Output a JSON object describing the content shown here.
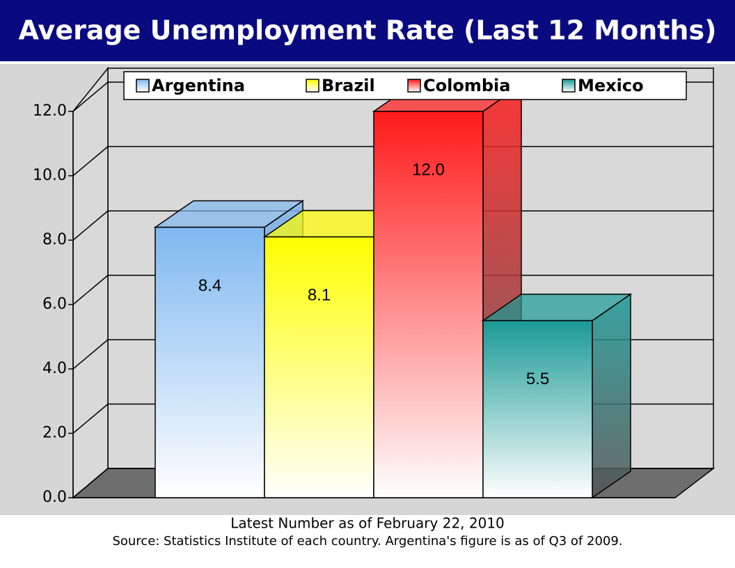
{
  "chart_data": {
    "type": "bar3d",
    "title": "Average Unemployment Rate (Last 12 Months)",
    "series": [
      {
        "name": "Argentina",
        "color": "#7fb8f0",
        "values": [
          8.4
        ]
      },
      {
        "name": "Brazil",
        "color": "#ffff00",
        "values": [
          8.1
        ]
      },
      {
        "name": "Colombia",
        "color": "#ff1a1a",
        "values": [
          12.0
        ],
        "value_labels": [
          "12.0"
        ]
      },
      {
        "name": "Mexico",
        "color": "#1a9a96",
        "values": [
          5.5
        ]
      }
    ],
    "ylim": [
      0,
      12
    ],
    "yticks": [
      {
        "value": 0,
        "label": "0.0"
      },
      {
        "value": 2,
        "label": "2.0"
      },
      {
        "value": 4,
        "label": "4.0"
      },
      {
        "value": 6,
        "label": "6.0"
      },
      {
        "value": 8,
        "label": "8.0"
      },
      {
        "value": 10,
        "label": "10.0"
      },
      {
        "value": 12,
        "label": "12.0"
      }
    ],
    "grid": true,
    "notes": [
      "Latest Number as of February 22, 2010",
      "Source: Statistics Institute of each country. Argentina's figure is as of Q3 of 2009."
    ]
  }
}
